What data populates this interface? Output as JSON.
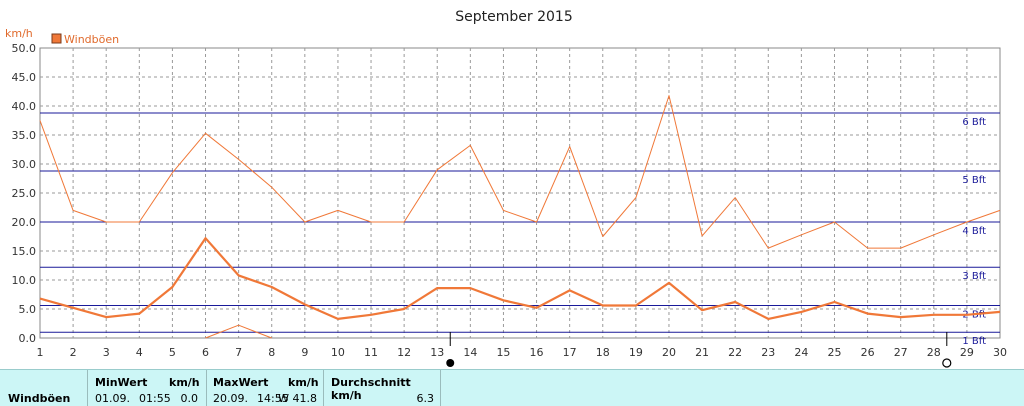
{
  "chart_data": {
    "type": "line",
    "title": "September 2015",
    "ylabel": "km/h",
    "ylim": [
      0,
      50
    ],
    "yticks": [
      "0.0",
      "5.0",
      "10.0",
      "15.0",
      "20.0",
      "25.0",
      "30.0",
      "35.0",
      "40.0",
      "45.0",
      "50.0"
    ],
    "x": [
      1,
      2,
      3,
      4,
      5,
      6,
      7,
      8,
      9,
      10,
      11,
      12,
      13,
      14,
      15,
      16,
      17,
      18,
      19,
      20,
      21,
      22,
      23,
      24,
      25,
      26,
      27,
      28,
      29,
      30
    ],
    "grid": true,
    "legend": "top-left",
    "series": [
      {
        "name": "Windböen",
        "role": "daily-max",
        "color": "#f07838",
        "values": [
          37.5,
          22.0,
          20.0,
          20.0,
          28.5,
          35.3,
          30.8,
          26.0,
          20.0,
          22.0,
          20.0,
          20.0,
          29.0,
          33.2,
          22.0,
          20.0,
          33.0,
          17.5,
          24.2,
          41.8,
          17.6,
          24.2,
          15.5,
          17.8,
          20.0,
          15.5,
          15.5,
          17.8,
          20.0,
          22.0
        ]
      },
      {
        "name": "Windböen",
        "role": "daily-mean",
        "color": "#f07838",
        "values": [
          6.8,
          5.2,
          3.6,
          4.2,
          8.8,
          17.2,
          10.8,
          8.8,
          5.8,
          3.3,
          4.0,
          5.0,
          8.6,
          8.6,
          6.5,
          5.2,
          8.2,
          5.6,
          5.6,
          9.5,
          4.8,
          6.2,
          3.3,
          4.5,
          6.2,
          4.2,
          3.6,
          4.0,
          4.0,
          4.5
        ]
      },
      {
        "name": "Windböen",
        "role": "daily-min",
        "color": "#f07838",
        "values": [
          null,
          null,
          null,
          null,
          null,
          0.0,
          2.2,
          0.0,
          null,
          null,
          null,
          null,
          null,
          null,
          null,
          null,
          null,
          null,
          null,
          null,
          null,
          null,
          null,
          null,
          null,
          null,
          null,
          null,
          null,
          null
        ]
      }
    ],
    "beaufort_lines": [
      {
        "label": "1 Bft",
        "value": 1.0
      },
      {
        "label": "2 Bft",
        "value": 5.6
      },
      {
        "label": "3 Bft",
        "value": 12.2
      },
      {
        "label": "4 Bft",
        "value": 20.0
      },
      {
        "label": "5 Bft",
        "value": 28.8
      },
      {
        "label": "6 Bft",
        "value": 38.8
      }
    ],
    "beaufort_color": "#1a1a99",
    "moon_markers": [
      {
        "day": 13,
        "phase": "new-moon",
        "symbol": "●"
      },
      {
        "day": 28,
        "phase": "full-moon",
        "symbol": "○"
      }
    ]
  },
  "legend": {
    "label": "Windböen",
    "color": "#f07838"
  },
  "stats": {
    "row_label": "Windböen",
    "min": {
      "header": "MinWert",
      "unit": "km/h",
      "date": "01.09.",
      "time": "01:55",
      "value": "0.0"
    },
    "max": {
      "header": "MaxWert",
      "unit": "km/h",
      "date": "20.09.",
      "time": "14:55",
      "value": "W 41.8"
    },
    "avg": {
      "header": "Durchschnitt km/h",
      "value": "6.3"
    },
    "background": "#ccf6f6"
  }
}
